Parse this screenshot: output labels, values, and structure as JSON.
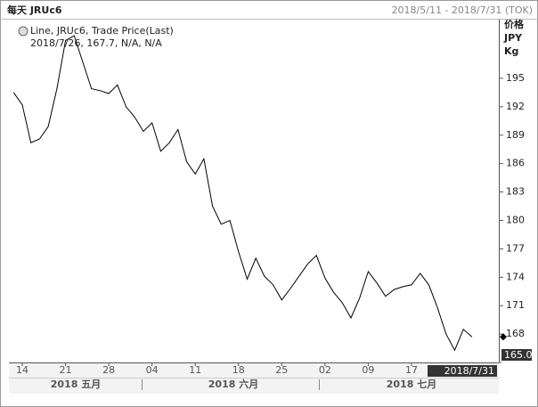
{
  "chart_data": {
    "type": "line",
    "title": "每天 JRUc6",
    "subtitle": "2018/5/11 - 2018/7/31 (TOK)",
    "y_axis_label": [
      "价格",
      "JPY",
      "Kg"
    ],
    "legend": [
      "Line, JRUc6, Trade Price(Last)",
      "2018/7/26, 167.7, N/A, N/A"
    ],
    "cursor_label": "2018/7/31",
    "month_labels": [
      "2018 五月",
      "2018 六月",
      "2018 七月"
    ],
    "categories": [
      null,
      "14",
      null,
      null,
      null,
      null,
      "21",
      null,
      null,
      null,
      null,
      "28",
      null,
      null,
      null,
      null,
      "04",
      null,
      null,
      null,
      null,
      "11",
      null,
      null,
      null,
      null,
      "18",
      null,
      null,
      null,
      null,
      "25",
      null,
      null,
      null,
      null,
      "02",
      null,
      null,
      null,
      null,
      "09",
      null,
      null,
      null,
      null,
      "17",
      null,
      null,
      null,
      null,
      null,
      null,
      null,
      null,
      null,
      null
    ],
    "series": [
      {
        "name": "JRUc6",
        "color": "#000000",
        "values": [
          193.5,
          192.2,
          188.2,
          188.6,
          189.9,
          193.9,
          199.0,
          199.5,
          196.7,
          193.9,
          193.7,
          193.4,
          194.3,
          192.0,
          190.9,
          189.4,
          190.3,
          187.3,
          188.2,
          189.6,
          186.2,
          184.9,
          186.5,
          181.5,
          179.6,
          180.0,
          176.7,
          173.8,
          176.0,
          174.1,
          173.2,
          171.6,
          172.8,
          174.1,
          175.4,
          176.3,
          173.9,
          172.4,
          171.3,
          169.7,
          171.8,
          174.6,
          173.4,
          172.0,
          172.7,
          173.0,
          173.2,
          174.4,
          173.2,
          170.8,
          168.0,
          166.3,
          168.5,
          167.7,
          null,
          null,
          null
        ]
      }
    ],
    "ylim": [
      165,
      201.2
    ],
    "yticks": [
      {
        "value": 165,
        "label": "165.0"
      },
      168,
      171,
      174,
      177,
      180,
      183,
      186,
      189,
      192,
      195
    ],
    "grid": false
  }
}
